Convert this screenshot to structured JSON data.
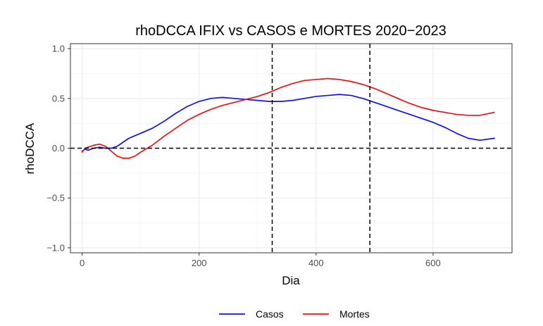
{
  "chart_data": {
    "type": "line",
    "title": "rhoDCCA IFIX vs CASOS e MORTES 2020−2023",
    "xlabel": "Dia",
    "ylabel": "rhoDCCA",
    "xlim": [
      -20,
      735
    ],
    "ylim": [
      -1.05,
      1.05
    ],
    "x_ticks": [
      0,
      200,
      400,
      600
    ],
    "x_tick_labels": [
      "0",
      "200",
      "400",
      "600"
    ],
    "y_ticks": [
      -1.0,
      -0.5,
      0.0,
      0.5,
      1.0
    ],
    "y_tick_labels": [
      "−1.0",
      "−0.5",
      "0.0",
      "0.5",
      "1.0"
    ],
    "grid": true,
    "legend_position": "bottom",
    "reference_lines": {
      "horizontal": [
        0.0
      ],
      "vertical": [
        325,
        492
      ],
      "style": "dashed",
      "color": "#000000"
    },
    "series": [
      {
        "name": "Casos",
        "color": "#1010ee",
        "x": [
          0,
          5,
          10,
          20,
          30,
          40,
          50,
          60,
          70,
          80,
          100,
          120,
          140,
          160,
          180,
          200,
          220,
          240,
          260,
          280,
          300,
          320,
          340,
          360,
          380,
          400,
          420,
          440,
          460,
          480,
          500,
          520,
          540,
          560,
          580,
          600,
          620,
          640,
          660,
          680,
          705
        ],
        "values": [
          -0.03,
          -0.01,
          -0.02,
          0.0,
          0.01,
          0.0,
          0.0,
          0.02,
          0.06,
          0.1,
          0.15,
          0.2,
          0.27,
          0.35,
          0.42,
          0.47,
          0.5,
          0.51,
          0.5,
          0.49,
          0.48,
          0.47,
          0.47,
          0.48,
          0.5,
          0.52,
          0.53,
          0.54,
          0.53,
          0.5,
          0.46,
          0.42,
          0.38,
          0.34,
          0.3,
          0.26,
          0.21,
          0.15,
          0.1,
          0.08,
          0.1
        ]
      },
      {
        "name": "Mortes",
        "color": "#ee1111",
        "x": [
          0,
          5,
          10,
          20,
          30,
          40,
          50,
          60,
          70,
          80,
          90,
          100,
          120,
          140,
          160,
          180,
          200,
          220,
          240,
          260,
          280,
          300,
          320,
          340,
          360,
          380,
          400,
          420,
          440,
          460,
          480,
          500,
          520,
          540,
          560,
          580,
          600,
          620,
          640,
          660,
          680,
          705
        ],
        "values": [
          -0.04,
          0.0,
          0.01,
          0.03,
          0.04,
          0.02,
          -0.03,
          -0.08,
          -0.1,
          -0.1,
          -0.08,
          -0.04,
          0.03,
          0.12,
          0.2,
          0.28,
          0.34,
          0.39,
          0.43,
          0.46,
          0.49,
          0.52,
          0.56,
          0.61,
          0.65,
          0.68,
          0.69,
          0.7,
          0.69,
          0.67,
          0.64,
          0.6,
          0.55,
          0.5,
          0.45,
          0.41,
          0.38,
          0.36,
          0.34,
          0.33,
          0.33,
          0.36
        ]
      }
    ]
  }
}
